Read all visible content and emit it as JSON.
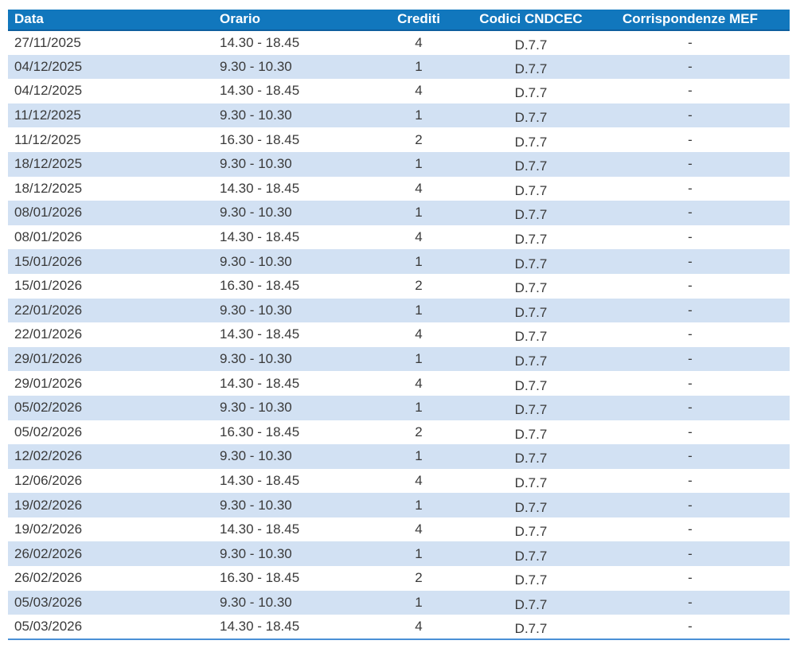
{
  "colors": {
    "header_bg": "#1177bd",
    "header_text": "#ffffff",
    "header_border": "#0d5e9e",
    "stripe": "#d2e1f3",
    "row_text": "#3a3a3a",
    "bottom_border": "#4a90d6",
    "page_bg": "#ffffff"
  },
  "table": {
    "columns": [
      {
        "key": "data",
        "label": "Data",
        "align": "left"
      },
      {
        "key": "orario",
        "label": "Orario",
        "align": "left"
      },
      {
        "key": "crediti",
        "label": "Crediti",
        "align": "center"
      },
      {
        "key": "codici",
        "label": "Codici CNDCEC",
        "align": "center"
      },
      {
        "key": "mef",
        "label": "Corrispondenze MEF",
        "align": "center"
      }
    ],
    "rows": [
      {
        "data": "27/11/2025",
        "orario": "14.30 - 18.45",
        "crediti": "4",
        "codici": "D.7.7",
        "mef": "-"
      },
      {
        "data": "04/12/2025",
        "orario": "9.30 - 10.30",
        "crediti": "1",
        "codici": "D.7.7",
        "mef": "-"
      },
      {
        "data": "04/12/2025",
        "orario": "14.30 - 18.45",
        "crediti": "4",
        "codici": "D.7.7",
        "mef": "-"
      },
      {
        "data": "11/12/2025",
        "orario": "9.30 - 10.30",
        "crediti": "1",
        "codici": "D.7.7",
        "mef": "-"
      },
      {
        "data": "11/12/2025",
        "orario": "16.30 - 18.45",
        "crediti": "2",
        "codici": "D.7.7",
        "mef": "-"
      },
      {
        "data": "18/12/2025",
        "orario": "9.30 - 10.30",
        "crediti": "1",
        "codici": "D.7.7",
        "mef": "-"
      },
      {
        "data": "18/12/2025",
        "orario": "14.30 - 18.45",
        "crediti": "4",
        "codici": "D.7.7",
        "mef": "-"
      },
      {
        "data": "08/01/2026",
        "orario": "9.30 - 10.30",
        "crediti": "1",
        "codici": "D.7.7",
        "mef": "-"
      },
      {
        "data": "08/01/2026",
        "orario": "14.30 - 18.45",
        "crediti": "4",
        "codici": "D.7.7",
        "mef": "-"
      },
      {
        "data": "15/01/2026",
        "orario": "9.30 - 10.30",
        "crediti": "1",
        "codici": "D.7.7",
        "mef": "-"
      },
      {
        "data": "15/01/2026",
        "orario": "16.30 - 18.45",
        "crediti": "2",
        "codici": "D.7.7",
        "mef": "-"
      },
      {
        "data": "22/01/2026",
        "orario": "9.30 - 10.30",
        "crediti": "1",
        "codici": "D.7.7",
        "mef": "-"
      },
      {
        "data": "22/01/2026",
        "orario": "14.30 - 18.45",
        "crediti": "4",
        "codici": "D.7.7",
        "mef": "-"
      },
      {
        "data": "29/01/2026",
        "orario": "9.30 - 10.30",
        "crediti": "1",
        "codici": "D.7.7",
        "mef": "-"
      },
      {
        "data": "29/01/2026",
        "orario": "14.30 - 18.45",
        "crediti": "4",
        "codici": "D.7.7",
        "mef": "-"
      },
      {
        "data": "05/02/2026",
        "orario": "9.30 - 10.30",
        "crediti": "1",
        "codici": "D.7.7",
        "mef": "-"
      },
      {
        "data": "05/02/2026",
        "orario": "16.30 - 18.45",
        "crediti": "2",
        "codici": "D.7.7",
        "mef": "-"
      },
      {
        "data": "12/02/2026",
        "orario": "9.30 - 10.30",
        "crediti": "1",
        "codici": "D.7.7",
        "mef": "-"
      },
      {
        "data": "12/06/2026",
        "orario": "14.30 - 18.45",
        "crediti": "4",
        "codici": "D.7.7",
        "mef": "-"
      },
      {
        "data": "19/02/2026",
        "orario": "9.30 - 10.30",
        "crediti": "1",
        "codici": "D.7.7",
        "mef": "-"
      },
      {
        "data": "19/02/2026",
        "orario": "14.30 - 18.45",
        "crediti": "4",
        "codici": "D.7.7",
        "mef": "-"
      },
      {
        "data": "26/02/2026",
        "orario": "9.30 - 10.30",
        "crediti": "1",
        "codici": "D.7.7",
        "mef": "-"
      },
      {
        "data": "26/02/2026",
        "orario": "16.30 - 18.45",
        "crediti": "2",
        "codici": "D.7.7",
        "mef": "-"
      },
      {
        "data": "05/03/2026",
        "orario": "9.30 - 10.30",
        "crediti": "1",
        "codici": "D.7.7",
        "mef": "-"
      },
      {
        "data": "05/03/2026",
        "orario": "14.30 - 18.45",
        "crediti": "4",
        "codici": "D.7.7",
        "mef": "-"
      }
    ]
  }
}
